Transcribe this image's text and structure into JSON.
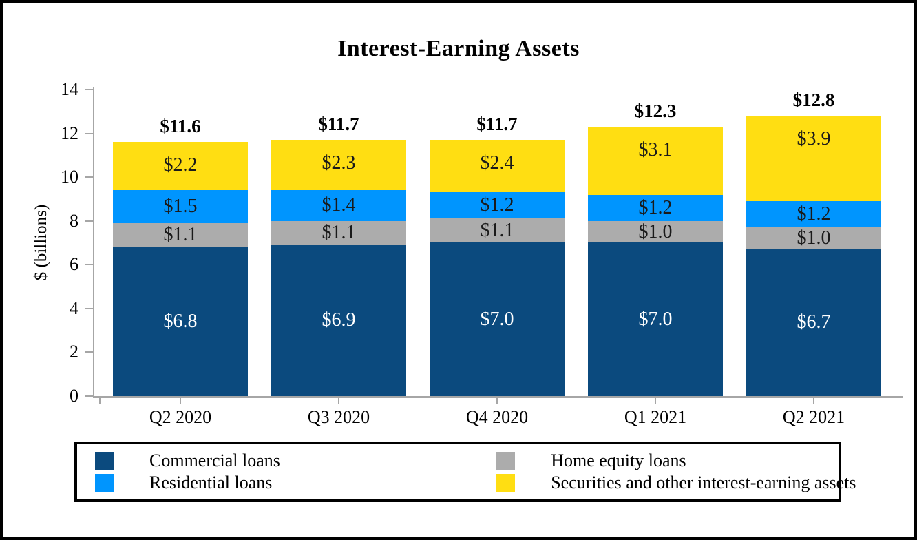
{
  "chart_data": {
    "type": "bar",
    "stacked": true,
    "title": "Interest-Earning Assets",
    "ylabel": "$ (billions)",
    "ylim": [
      0,
      14
    ],
    "y_ticks": [
      0,
      2,
      4,
      6,
      8,
      10,
      12,
      14
    ],
    "grid": false,
    "legend_position": "bottom",
    "value_prefix": "$",
    "axis_color": "#A6A6A6",
    "categories": [
      "Q2 2020",
      "Q3 2020",
      "Q4 2020",
      "Q1 2021",
      "Q2 2021"
    ],
    "series": [
      {
        "name": "Commercial loans",
        "color": "#0B4A7E",
        "label_color": "#FFFFFF",
        "label_position": "center",
        "values": [
          6.8,
          6.9,
          7.0,
          7.0,
          6.7
        ],
        "labels": [
          "$6.8",
          "$6.9",
          "$7.0",
          "$7.0",
          "$6.7"
        ]
      },
      {
        "name": "Home equity loans",
        "color": "#ACACAC",
        "label_color": "#1A1A1A",
        "label_position": "center",
        "values": [
          1.1,
          1.1,
          1.1,
          1.0,
          1.0
        ],
        "labels": [
          "$1.1",
          "$1.1",
          "$1.1",
          "$1.0",
          "$1.0"
        ]
      },
      {
        "name": "Residential loans",
        "color": "#0095FE",
        "label_color": "#1A1A1A",
        "label_position": "center",
        "values": [
          1.5,
          1.4,
          1.2,
          1.2,
          1.2
        ],
        "labels": [
          "$1.5",
          "$1.4",
          "$1.2",
          "$1.2",
          "$1.2"
        ]
      },
      {
        "name": "Securities and other interest-earning assets",
        "color": "#FFDE12",
        "label_color": "#1A1A1A",
        "label_position": "inside-top",
        "values": [
          2.2,
          2.3,
          2.4,
          3.1,
          3.9
        ],
        "labels": [
          "$2.2",
          "$2.3",
          "$2.4",
          "$3.1",
          "$3.9"
        ]
      }
    ],
    "totals": [
      "$11.6",
      "$11.7",
      "$11.7",
      "$12.3",
      "$12.8"
    ],
    "legend": [
      {
        "label": "Commercial loans",
        "color": "#0B4A7E"
      },
      {
        "label": "Residential loans",
        "color": "#0095FE"
      },
      {
        "label": "Home equity loans",
        "color": "#ACACAC"
      },
      {
        "label": "Securities and other interest-earning assets",
        "color": "#FFDE12"
      }
    ]
  }
}
